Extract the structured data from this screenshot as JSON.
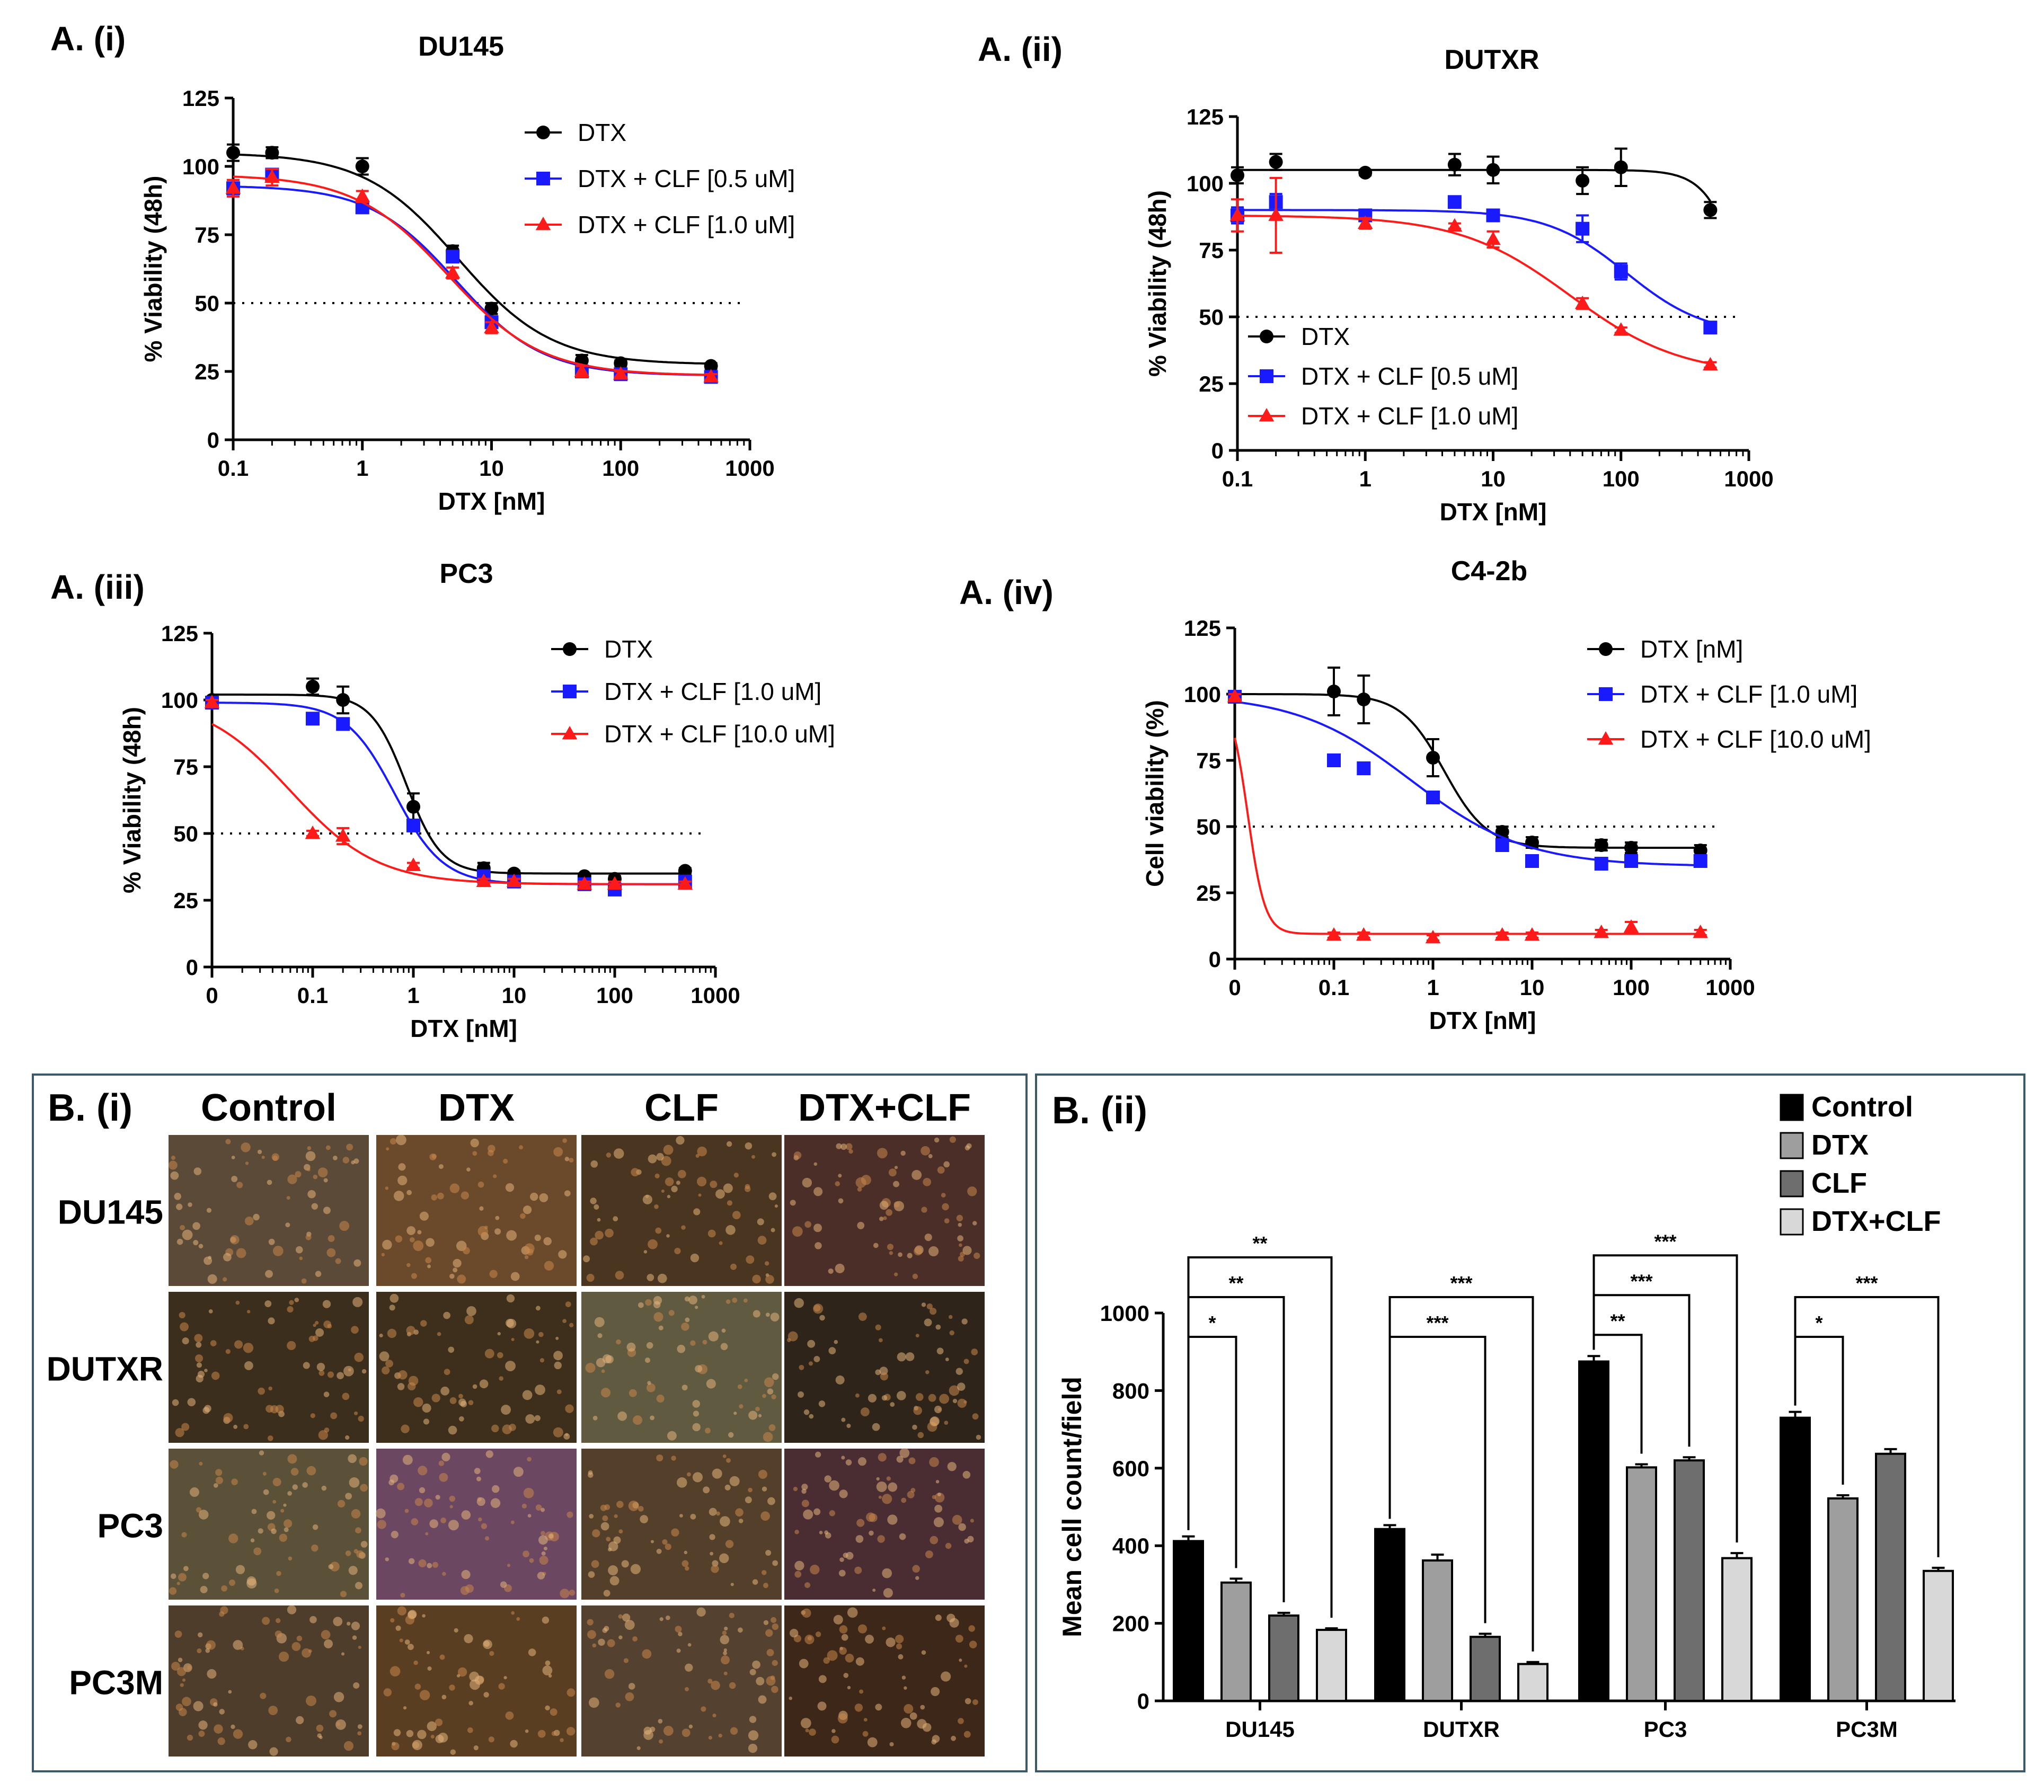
{
  "panels_A": [
    {
      "label": "A. (i)",
      "chart_data": {
        "type": "scatter",
        "title": "DU145",
        "xlabel": "DTX [nM]",
        "ylabel": "% Viability (48h)",
        "x_scale": "log",
        "x_ticks": [
          "0.1",
          "1",
          "10",
          "100",
          "1000"
        ],
        "y_ticks": [
          "0",
          "25",
          "50",
          "75",
          "100",
          "125"
        ],
        "ylim": [
          0,
          125
        ],
        "reference_line": 50,
        "legend_position": "top-right",
        "series": [
          {
            "name": "DTX",
            "color": "#000000",
            "marker": "circle",
            "x": [
              0.1,
              0.2,
              1,
              5,
              10,
              50,
              100,
              500
            ],
            "y": [
              105,
              105,
              100,
              69,
              48,
              29,
              28,
              27
            ],
            "err": [
              3,
              2,
              3,
              2,
              2,
              2,
              1,
              1
            ],
            "fit": {
              "top": 105,
              "bottom": 27.5,
              "ec50": 5.5,
              "hill": 1.2
            }
          },
          {
            "name": "DTX + CLF [0.5 uM]",
            "color": "#1a1aff",
            "marker": "square",
            "x": [
              0.1,
              0.2,
              1,
              5,
              10,
              50,
              100,
              500
            ],
            "y": [
              92,
              97,
              85,
              67,
              43,
              25,
              24,
              23
            ],
            "err": [
              3,
              2,
              2,
              2,
              2,
              2,
              1,
              1
            ],
            "fit": {
              "top": 93,
              "bottom": 23.5,
              "ec50": 5.3,
              "hill": 1.3
            }
          },
          {
            "name": "DTX + CLF [1.0 uM]",
            "color": "#ff1a1a",
            "marker": "triangle",
            "x": [
              0.1,
              0.2,
              1,
              5,
              10,
              50,
              100,
              500
            ],
            "y": [
              92,
              96,
              89,
              61,
              41,
              25,
              24,
              23
            ],
            "err": [
              3,
              3,
              2,
              2,
              2,
              2,
              1,
              1
            ],
            "fit": {
              "top": 97,
              "bottom": 23.5,
              "ec50": 4.6,
              "hill": 1.2
            }
          }
        ]
      }
    },
    {
      "label": "A. (ii)",
      "chart_data": {
        "type": "scatter",
        "title": "DUTXR",
        "xlabel": "DTX [nM]",
        "ylabel": "% Viability (48h)",
        "x_scale": "log",
        "x_ticks": [
          "0.1",
          "1",
          "10",
          "100",
          "1000"
        ],
        "y_ticks": [
          "0",
          "25",
          "50",
          "75",
          "100",
          "125"
        ],
        "ylim": [
          0,
          125
        ],
        "reference_line": 50,
        "legend_position": "bottom-left",
        "series": [
          {
            "name": "DTX",
            "color": "#000000",
            "marker": "circle",
            "x": [
              0.1,
              0.2,
              1,
              5,
              10,
              50,
              100,
              500
            ],
            "y": [
              103,
              108,
              104,
              107,
              105,
              101,
              106,
              90
            ],
            "err": [
              3,
              3,
              1,
              4,
              5,
              5,
              7,
              3
            ],
            "fit": {
              "top": 105,
              "bottom": 0,
              "ec50": 1000,
              "hill": 3
            }
          },
          {
            "name": "DTX + CLF [0.5 uM]",
            "color": "#1a1aff",
            "marker": "square",
            "x": [
              0.1,
              0.2,
              1,
              5,
              10,
              50,
              100,
              500
            ],
            "y": [
              88,
              93,
              88,
              93,
              88,
              83,
              67,
              46
            ],
            "err": [
              3,
              3,
              1,
              1,
              1,
              5,
              3,
              2
            ],
            "fit": {
              "top": 90,
              "bottom": 43,
              "ec50": 110,
              "hill": 1.4
            }
          },
          {
            "name": "DTX + CLF [1.0 uM]",
            "color": "#ff1a1a",
            "marker": "triangle",
            "x": [
              0.1,
              0.2,
              1,
              5,
              10,
              50,
              100,
              500
            ],
            "y": [
              88,
              88,
              85,
              84,
              79,
              55,
              45,
              32
            ],
            "err": [
              6,
              14,
              2,
              1,
              3,
              2,
              1,
              1
            ],
            "fit": {
              "top": 88,
              "bottom": 28,
              "ec50": 40,
              "hill": 1.0
            }
          }
        ]
      }
    },
    {
      "label": "A. (iii)",
      "chart_data": {
        "type": "scatter",
        "title": "PC3",
        "xlabel": "DTX [nM]",
        "ylabel": "% Viability (48h)",
        "x_scale": "log",
        "x_ticks": [
          "0",
          "0.1",
          "1",
          "10",
          "100",
          "1000"
        ],
        "y_ticks": [
          "0",
          "25",
          "50",
          "75",
          "100",
          "125"
        ],
        "ylim": [
          0,
          125
        ],
        "reference_line": 50,
        "legend_position": "top-right",
        "series": [
          {
            "name": "DTX",
            "color": "#000000",
            "marker": "circle",
            "x": [
              0.01,
              0.1,
              0.2,
              1,
              5,
              10,
              50,
              100,
              500
            ],
            "y": [
              100,
              105,
              100,
              60,
              37,
              35,
              34,
              33,
              36
            ],
            "err": [
              1,
              3,
              5,
              5,
              2,
              1,
              1,
              1,
              1
            ],
            "fit": {
              "top": 102,
              "bottom": 35,
              "ec50": 0.85,
              "hill": 2.5
            }
          },
          {
            "name": "DTX + CLF [1.0 uM]",
            "color": "#1a1aff",
            "marker": "square",
            "x": [
              0.01,
              0.1,
              0.2,
              1,
              5,
              10,
              50,
              100,
              500
            ],
            "y": [
              99,
              93,
              91,
              53,
              34,
              32,
              31,
              29,
              32
            ],
            "err": [
              1,
              2,
              2,
              2,
              1,
              1,
              1,
              1,
              1
            ],
            "fit": {
              "top": 99,
              "bottom": 31,
              "ec50": 0.65,
              "hill": 1.8
            }
          },
          {
            "name": "DTX + CLF [10.0 uM]",
            "color": "#ff1a1a",
            "marker": "triangle",
            "x": [
              0.01,
              0.1,
              0.2,
              1,
              5,
              10,
              50,
              100,
              500
            ],
            "y": [
              99,
              50,
              49,
              38,
              32,
              32,
              31,
              31,
              31
            ],
            "err": [
              1,
              1,
              3,
              1,
              1,
              1,
              1,
              1,
              1
            ],
            "fit": {
              "top": 101,
              "bottom": 31,
              "ec50": 0.06,
              "hill": 1.0
            }
          }
        ]
      }
    },
    {
      "label": "A. (iv)",
      "chart_data": {
        "type": "scatter",
        "title": "C4-2b",
        "xlabel": "DTX [nM]",
        "ylabel": "Cell viability (%)",
        "x_scale": "log",
        "x_ticks": [
          "0",
          "0.1",
          "1",
          "10",
          "100",
          "1000"
        ],
        "y_ticks": [
          "0",
          "25",
          "50",
          "75",
          "100",
          "125"
        ],
        "ylim": [
          0,
          125
        ],
        "reference_line": 50,
        "legend_position": "top-right",
        "series": [
          {
            "name": "DTX [nM]",
            "color": "#000000",
            "marker": "circle",
            "x": [
              0.01,
              0.1,
              0.2,
              1,
              5,
              10,
              50,
              100,
              500
            ],
            "y": [
              99,
              101,
              98,
              76,
              48,
              44,
              43,
              42,
              41
            ],
            "err": [
              2,
              9,
              9,
              7,
              2,
              2,
              2,
              2,
              2
            ],
            "fit": {
              "top": 100,
              "bottom": 42,
              "ec50": 1.3,
              "hill": 2.0
            }
          },
          {
            "name": "DTX + CLF [1.0 uM]",
            "color": "#1a1aff",
            "marker": "square",
            "x": [
              0.01,
              0.1,
              0.2,
              1,
              5,
              10,
              50,
              100,
              500
            ],
            "y": [
              99,
              75,
              72,
              61,
              43,
              37,
              36,
              37,
              37
            ],
            "err": [
              1,
              2,
              1,
              1,
              2,
              1,
              1,
              1,
              1
            ],
            "fit": {
              "top": 100,
              "bottom": 35,
              "ec50": 0.6,
              "hill": 0.75
            }
          },
          {
            "name": "DTX + CLF [10.0 uM]",
            "color": "#ff1a1a",
            "marker": "triangle",
            "x": [
              0.01,
              0.1,
              0.2,
              1,
              5,
              10,
              50,
              100,
              500
            ],
            "y": [
              99,
              9,
              9,
              8,
              9,
              9,
              10,
              12,
              10
            ],
            "err": [
              1,
              1,
              1,
              1,
              1,
              1,
              1,
              2,
              1
            ],
            "fit": {
              "top": 100,
              "bottom": 9.5,
              "ec50": 0.0135,
              "hill": 5
            }
          }
        ]
      }
    }
  ],
  "panel_B_i": {
    "label": "B. (i)",
    "columns": [
      "Control",
      "DTX",
      "CLF",
      "DTX+CLF"
    ],
    "rows": [
      "DU145",
      "DUTXR",
      "PC3",
      "PC3M"
    ],
    "tints": [
      [
        "#5b4a37",
        "#6b4a2c",
        "#4a3521",
        "#4b2e27"
      ],
      [
        "#3c2e1c",
        "#3d2f1c",
        "#5f5a40",
        "#2e241a"
      ],
      [
        "#5a5138",
        "#6c4762",
        "#54402a",
        "#4a2d33"
      ],
      [
        "#4e3d2a",
        "#5a3e22",
        "#544130",
        "#3d2718"
      ]
    ]
  },
  "panel_B_ii": {
    "label": "B. (ii)",
    "chart_data": {
      "type": "bar",
      "ylabel": "Mean cell count/field",
      "categories": [
        "DU145",
        "DUTXR",
        "PC3",
        "PC3M"
      ],
      "ylim": [
        0,
        1000
      ],
      "y_ticks": [
        "0",
        "200",
        "400",
        "600",
        "800",
        "1000"
      ],
      "legend_position": "top-right",
      "series": [
        {
          "name": "Control",
          "color": "#000000",
          "values": [
            412,
            443,
            875,
            730
          ],
          "err": [
            12,
            10,
            14,
            15
          ]
        },
        {
          "name": "DTX",
          "color": "#9e9e9e",
          "values": [
            305,
            362,
            602,
            522
          ],
          "err": [
            10,
            15,
            8,
            8
          ]
        },
        {
          "name": "CLF",
          "color": "#6e6e6e",
          "values": [
            220,
            165,
            620,
            637
          ],
          "err": [
            7,
            8,
            8,
            12
          ]
        },
        {
          "name": "DTX+CLF",
          "color": "#d8d8d8",
          "values": [
            183,
            95,
            368,
            335
          ],
          "err": [
            4,
            5,
            13,
            8
          ]
        }
      ],
      "significance": [
        {
          "category": 0,
          "to_series": 1,
          "label": "*"
        },
        {
          "category": 0,
          "to_series": 2,
          "label": "**"
        },
        {
          "category": 0,
          "to_series": 3,
          "label": "**"
        },
        {
          "category": 1,
          "to_series": 2,
          "label": "***"
        },
        {
          "category": 1,
          "to_series": 3,
          "label": "***"
        },
        {
          "category": 2,
          "to_series": 1,
          "label": "**"
        },
        {
          "category": 2,
          "to_series": 2,
          "label": "***"
        },
        {
          "category": 2,
          "to_series": 3,
          "label": "***"
        },
        {
          "category": 3,
          "to_series": 1,
          "label": "*"
        },
        {
          "category": 3,
          "to_series": 3,
          "label": "***"
        }
      ]
    }
  }
}
